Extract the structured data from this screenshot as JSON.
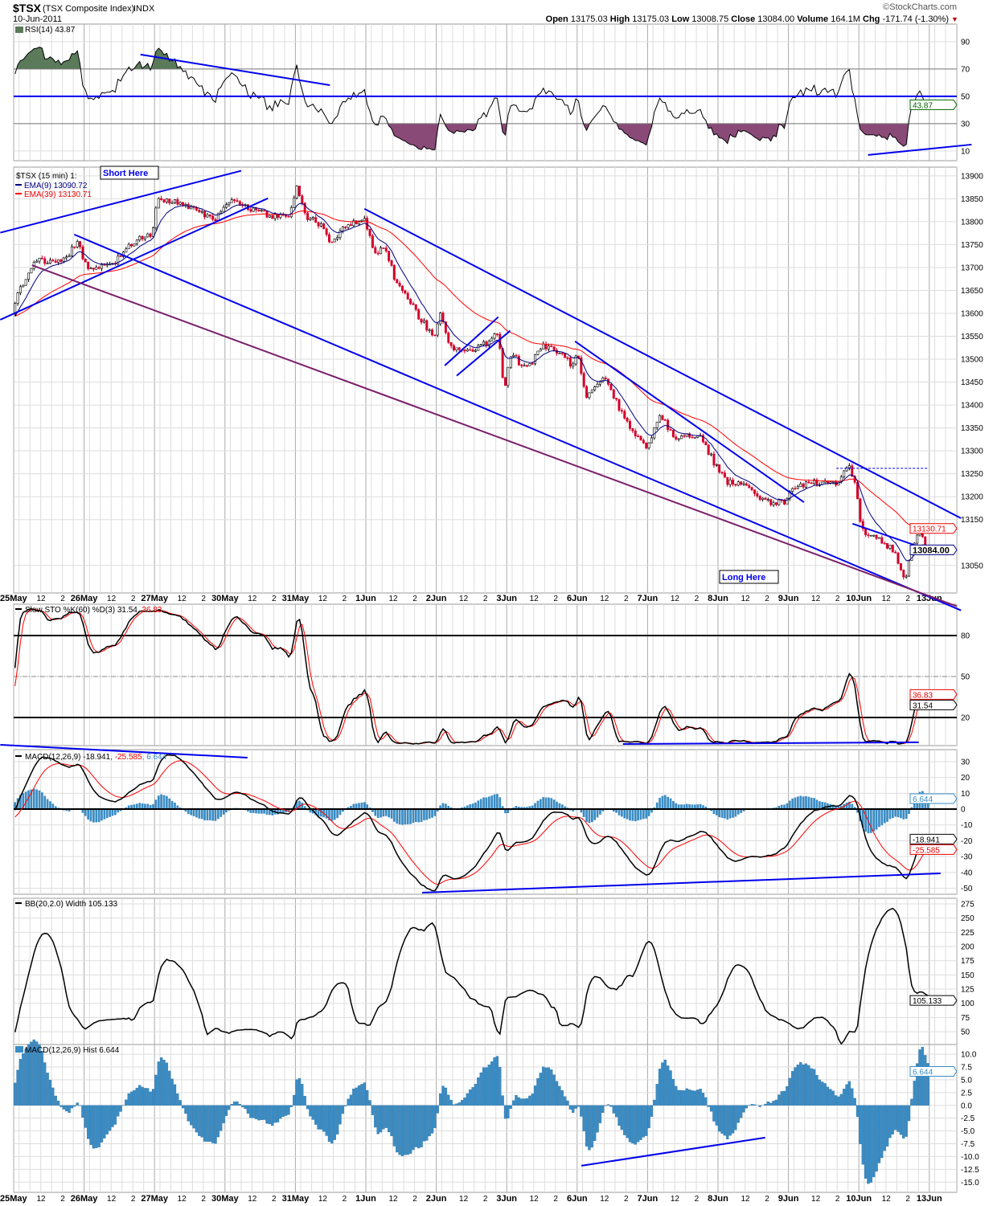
{
  "header": {
    "symbol": "$TSX",
    "name": "(TSX Composite Index)",
    "exchange": "INDX",
    "date": "10-Jun-2011",
    "watermark": "©StockCharts.com",
    "open_label": "Open",
    "open": "13175.03",
    "high_label": "High",
    "high": "13175.03",
    "low_label": "Low",
    "low": "13008.75",
    "close_label": "Close",
    "close": "13084.00",
    "volume_label": "Volume",
    "volume": "164.1M",
    "chg_label": "Chg",
    "chg": "-171.74 (-1.30%)",
    "chg_arrow": "▼"
  },
  "colors": {
    "trend": "#0000ee",
    "purple": "#7b1f6b",
    "up": "#000000",
    "down": "#d4002a",
    "ema9": "#000080",
    "ema39": "#ff0000",
    "hist": "#3a8cc4"
  },
  "x_axis": {
    "days": [
      "25May",
      "26May",
      "27May",
      "30May",
      "31May",
      "1Jun",
      "2Jun",
      "3Jun",
      "6Jun",
      "7Jun",
      "8Jun",
      "9Jun",
      "10Jun",
      "13Jun"
    ],
    "sub_labels": [
      "12",
      "2"
    ]
  },
  "annotations": {
    "short_here": "Short Here",
    "long_here": "Long Here"
  },
  "chart_data": [
    {
      "type": "line",
      "panel": "rsi",
      "title": "RSI(14) 43.87",
      "value_tag": "43.87",
      "ticks": [
        "90",
        "70",
        "50",
        "30",
        "10"
      ],
      "levels": [
        70,
        30
      ],
      "ylim": [
        0,
        100
      ],
      "trendlines": [
        [
          [
            1.8,
            80.6
          ],
          [
            4.49,
            58.2
          ]
        ],
        [
          [
            12.13,
            7.1
          ],
          [
            13.6,
            14.7
          ]
        ]
      ],
      "horizontal_line": 50
    },
    {
      "type": "candlestick",
      "panel": "price",
      "title": "$TSX (15 min) 1:",
      "ema9_label": "EMA(9) 13090.72",
      "ema39_label": "EMA(39) 13130.71",
      "close_tag": "13084.00",
      "ema39_tag": "13130.71",
      "ticks": [
        "13900",
        "13850",
        "13800",
        "13750",
        "13700",
        "13650",
        "13600",
        "13550",
        "13500",
        "13450",
        "13400",
        "13350",
        "13300",
        "13250",
        "13200",
        "13150",
        "13050"
      ],
      "bars_per_day": 26,
      "close_path": [
        [
          0.0,
          13600
        ],
        [
          0.03,
          13635
        ],
        [
          0.32,
          13714
        ],
        [
          0.72,
          13714
        ],
        [
          0.89,
          13758
        ],
        [
          1.06,
          13697
        ],
        [
          1.4,
          13705
        ],
        [
          1.63,
          13749
        ],
        [
          1.97,
          13775
        ],
        [
          2.03,
          13846
        ],
        [
          2.2,
          13846
        ],
        [
          2.55,
          13828
        ],
        [
          2.83,
          13802
        ],
        [
          3.06,
          13846
        ],
        [
          3.34,
          13828
        ],
        [
          3.69,
          13811
        ],
        [
          3.92,
          13811
        ],
        [
          4.01,
          13880
        ],
        [
          4.14,
          13814
        ],
        [
          4.37,
          13793
        ],
        [
          4.49,
          13749
        ],
        [
          4.71,
          13793
        ],
        [
          5.0,
          13802
        ],
        [
          5.11,
          13732
        ],
        [
          5.29,
          13741
        ],
        [
          5.4,
          13679
        ],
        [
          5.57,
          13635
        ],
        [
          5.8,
          13583
        ],
        [
          5.97,
          13548
        ],
        [
          6.06,
          13600
        ],
        [
          6.2,
          13530
        ],
        [
          6.37,
          13513
        ],
        [
          6.66,
          13530
        ],
        [
          6.88,
          13556
        ],
        [
          6.97,
          13425
        ],
        [
          7.05,
          13513
        ],
        [
          7.28,
          13478
        ],
        [
          7.51,
          13530
        ],
        [
          7.8,
          13513
        ],
        [
          7.91,
          13486
        ],
        [
          8.0,
          13513
        ],
        [
          8.14,
          13416
        ],
        [
          8.25,
          13442
        ],
        [
          8.42,
          13460
        ],
        [
          8.6,
          13390
        ],
        [
          8.82,
          13337
        ],
        [
          9.0,
          13302
        ],
        [
          9.17,
          13381
        ],
        [
          9.39,
          13329
        ],
        [
          9.74,
          13337
        ],
        [
          9.97,
          13267
        ],
        [
          10.14,
          13232
        ],
        [
          10.42,
          13223
        ],
        [
          10.65,
          13188
        ],
        [
          10.94,
          13188
        ],
        [
          11.05,
          13215
        ],
        [
          11.34,
          13232
        ],
        [
          11.68,
          13232
        ],
        [
          11.85,
          13267
        ],
        [
          11.96,
          13232
        ],
        [
          12.0,
          13162
        ],
        [
          12.08,
          13118
        ],
        [
          12.36,
          13101
        ],
        [
          12.53,
          13075
        ],
        [
          12.65,
          13013
        ],
        [
          12.76,
          13092
        ],
        [
          12.88,
          13127
        ],
        [
          12.96,
          13084
        ]
      ],
      "trendlines": [
        {
          "color": "trend",
          "pts": [
            [
              -0.19,
              13776
            ],
            [
              3.23,
              13911
            ]
          ]
        },
        {
          "color": "trend",
          "pts": [
            [
              -0.19,
              13586
            ],
            [
              3.61,
              13851
            ]
          ]
        },
        {
          "color": "trend",
          "pts": [
            [
              0.86,
              13772
            ],
            [
              13.45,
              12952
            ]
          ]
        },
        {
          "color": "purple",
          "pts": [
            [
              0.26,
              13705
            ],
            [
              13.39,
              12961
            ]
          ]
        },
        {
          "color": "trend",
          "pts": [
            [
              4.98,
              13828
            ],
            [
              13.45,
              13153
            ]
          ]
        },
        {
          "color": "trend",
          "pts": [
            [
              7.97,
              13539
            ],
            [
              11.22,
              13188
            ]
          ]
        },
        {
          "color": "trend",
          "pts": [
            [
              6.12,
              13486
            ],
            [
              6.88,
              13592
            ]
          ]
        },
        {
          "color": "trend",
          "pts": [
            [
              6.29,
              13464
            ],
            [
              7.05,
              13562
            ]
          ]
        },
        {
          "color": "trend",
          "pts": [
            [
              11.91,
              13141
            ],
            [
              13.16,
              13075
            ]
          ]
        }
      ],
      "dashed_level": {
        "from": 11.68,
        "to": 12.99,
        "value": 13262
      }
    },
    {
      "type": "line",
      "panel": "sto",
      "title_prefix": "Slow STO %K(60) %D(3) 31.54,",
      "title_d": "36.83",
      "k_tag": "31.54",
      "d_tag": "36.83",
      "ticks": [
        "80",
        "50",
        "20"
      ],
      "ylim": [
        0,
        100
      ],
      "trendlines": [
        [
          [
            -0.19,
            0
          ],
          [
            3.32,
            -9.4
          ]
        ],
        [
          [
            8.65,
            0.6
          ],
          [
            12.85,
            1.8
          ]
        ]
      ]
    },
    {
      "type": "line",
      "panel": "macd",
      "title_prefix": "MACD(12,26,9) -18.941",
      "title_signal": ", -25.585",
      "title_hist": ", 6.644",
      "macd_tag": "-18.941",
      "signal_tag": "-25.585",
      "hist_tag": "6.644",
      "ticks": [
        "30",
        "20",
        "10",
        "0",
        "-10",
        "-20",
        "-30",
        "-40",
        "-50"
      ],
      "trendlines": [
        [
          [
            5.8,
            -52.8
          ],
          [
            13.16,
            -40.6
          ]
        ]
      ]
    },
    {
      "type": "line",
      "panel": "bb",
      "title": "BB(20,2.0) Width 105.133",
      "value_tag": "105.133",
      "ticks": [
        "275",
        "250",
        "225",
        "200",
        "175",
        "150",
        "125",
        "100",
        "75",
        "50"
      ]
    },
    {
      "type": "bar",
      "panel": "hist",
      "title": "MACD(12,26,9) Hist 6.644",
      "value_tag": "6.644",
      "ticks": [
        "10.0",
        "7.5",
        "5.0",
        "2.5",
        "0.0",
        "-2.5",
        "-5.0",
        "-7.5",
        "-10.0",
        "-12.5",
        "-15.0"
      ],
      "trendlines": [
        [
          [
            8.06,
            -11.8
          ],
          [
            10.67,
            -6.3
          ]
        ]
      ]
    }
  ]
}
